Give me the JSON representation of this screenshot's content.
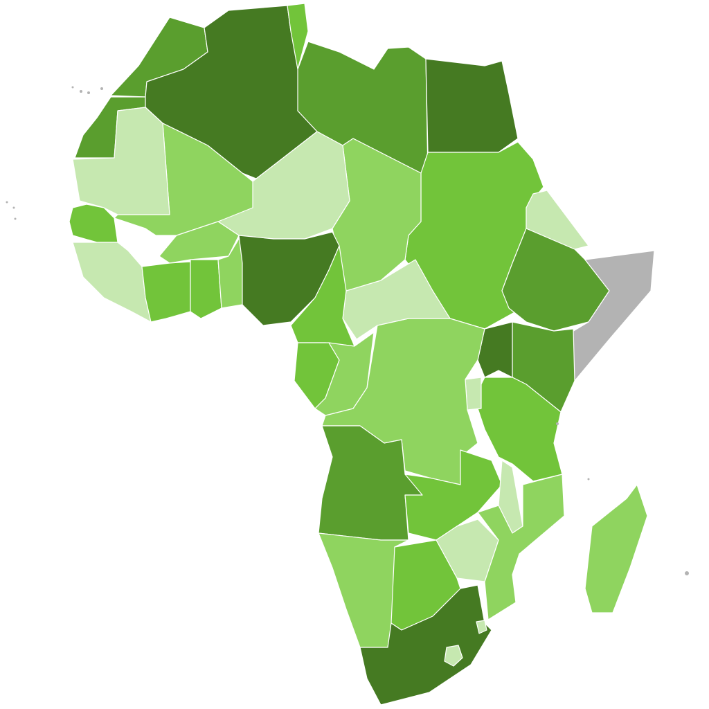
{
  "map": {
    "palette": {
      "level_darkest": "#457a22",
      "level_dark": "#5a9e2e",
      "level_mid": "#72c43a",
      "level_light": "#8fd45f",
      "level_lightest": "#c6e8b0",
      "no_data": "#b3b3b3"
    },
    "regions": {
      "MAR": "level_dark",
      "ESH": "level_dark",
      "DZA": "level_darkest",
      "TUN": "level_mid",
      "LBY": "level_dark",
      "EGY": "level_darkest",
      "SDN": "level_mid",
      "ERI": "level_lightest",
      "ETH": "level_dark",
      "SOM": "no_data",
      "KEN": "level_dark",
      "UGA": "level_darkest",
      "TZA": "level_mid",
      "RWA_BDI": "level_lightest",
      "COD": "level_light",
      "CAF": "level_lightest",
      "TCD": "level_light",
      "NER": "level_lightest",
      "MLI": "level_light",
      "MRT": "level_lightest",
      "SEN": "level_mid",
      "GIN_SLE_LBR": "level_lightest",
      "BFA": "level_light",
      "CIV": "level_mid",
      "GHA": "level_mid",
      "TGO_BEN": "level_light",
      "NGA": "level_darkest",
      "CMR": "level_mid",
      "GAB": "level_mid",
      "COG": "level_light",
      "AGO": "level_dark",
      "ZMB": "level_mid",
      "MWI": "level_lightest",
      "MOZ": "level_light",
      "ZWE": "level_lightest",
      "NAM": "level_light",
      "BWA": "level_mid",
      "ZAF": "level_darkest",
      "MDG": "level_light",
      "LSO": "level_lightest",
      "SWZ": "level_lightest"
    }
  }
}
